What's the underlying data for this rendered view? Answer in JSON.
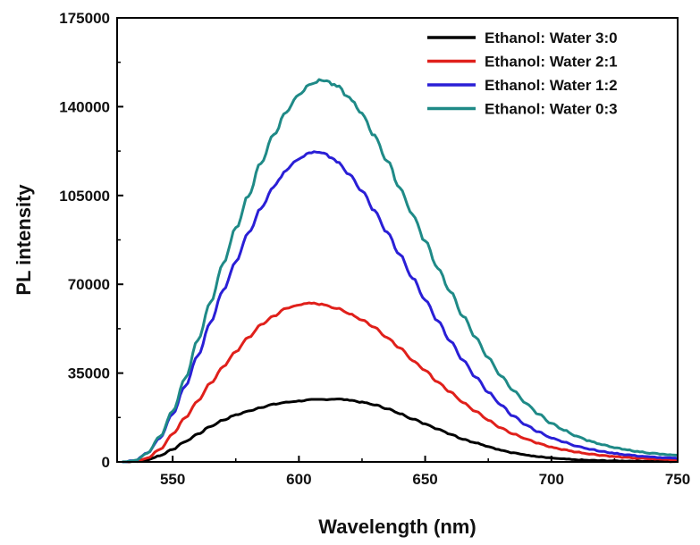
{
  "chart_data": {
    "type": "line",
    "title": "",
    "xlabel": "Wavelength (nm)",
    "ylabel": "PL intensity",
    "xlim": [
      528,
      750
    ],
    "ylim": [
      0,
      175000
    ],
    "xticks": [
      550,
      600,
      650,
      700,
      750
    ],
    "yticks": [
      0,
      35000,
      70000,
      105000,
      140000,
      175000
    ],
    "grid": false,
    "legend_position": "top-right",
    "x": [
      530,
      535,
      540,
      545,
      550,
      555,
      560,
      565,
      570,
      575,
      580,
      585,
      590,
      595,
      600,
      605,
      610,
      615,
      620,
      625,
      630,
      635,
      640,
      645,
      650,
      655,
      660,
      665,
      670,
      675,
      680,
      685,
      690,
      695,
      700,
      705,
      710,
      715,
      720,
      725,
      730,
      735,
      740,
      745,
      750
    ],
    "series": [
      {
        "name": "Ethanol: Water 3:0",
        "color": "#000000",
        "values": [
          0,
          200,
          800,
          2500,
          5000,
          8000,
          11000,
          14000,
          16500,
          18500,
          20000,
          21500,
          22700,
          23500,
          24000,
          24500,
          24600,
          24800,
          24400,
          23500,
          22500,
          21000,
          19000,
          17000,
          15000,
          13000,
          11000,
          9000,
          7500,
          6000,
          4700,
          3600,
          2700,
          2000,
          1500,
          1100,
          800,
          600,
          500,
          400,
          350,
          300,
          250,
          200,
          150
        ]
      },
      {
        "name": "Ethanol: Water 2:1",
        "color": "#e0201b",
        "values": [
          0,
          300,
          1500,
          5000,
          11000,
          17500,
          24000,
          31000,
          37500,
          43500,
          49000,
          54000,
          57500,
          60500,
          62000,
          62500,
          62000,
          60500,
          58500,
          56000,
          53000,
          49000,
          45000,
          40000,
          36000,
          31500,
          27500,
          23500,
          20000,
          16500,
          13500,
          11000,
          9000,
          7300,
          5800,
          4800,
          3900,
          3200,
          2600,
          2100,
          1700,
          1400,
          1200,
          1000,
          900
        ]
      },
      {
        "name": "Ethanol: Water 1:2",
        "color": "#2a1fd6",
        "values": [
          0,
          500,
          3500,
          9500,
          19000,
          30000,
          42000,
          55000,
          67500,
          79000,
          90000,
          100000,
          108500,
          115000,
          119500,
          122000,
          121500,
          118500,
          113500,
          107000,
          99000,
          90500,
          81500,
          72500,
          64000,
          55500,
          47500,
          40000,
          33500,
          27500,
          22500,
          18000,
          14500,
          11800,
          9500,
          7800,
          6300,
          5100,
          4100,
          3400,
          2800,
          2300,
          1900,
          1600,
          1400
        ]
      },
      {
        "name": "Ethanol: Water 0:3",
        "color": "#1f8a87",
        "values": [
          0,
          500,
          3500,
          10000,
          20000,
          33000,
          48000,
          63000,
          78000,
          92000,
          105000,
          118000,
          129000,
          138000,
          145000,
          149500,
          150500,
          148000,
          143500,
          137000,
          128500,
          118500,
          108000,
          97500,
          87000,
          76500,
          67000,
          57500,
          49000,
          41000,
          34000,
          28000,
          23000,
          18800,
          15200,
          12500,
          10200,
          8300,
          6800,
          5600,
          4700,
          4000,
          3400,
          2900,
          2500
        ]
      }
    ]
  }
}
